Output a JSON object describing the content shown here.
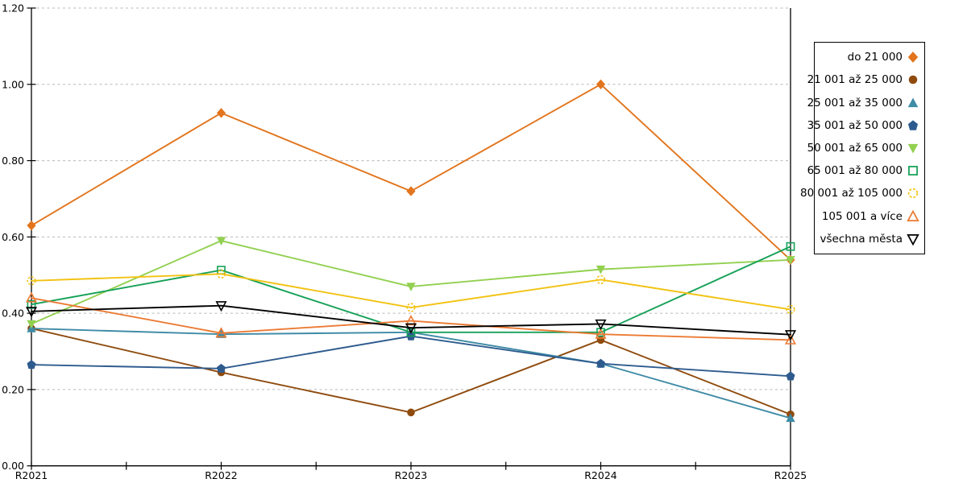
{
  "chart_data": {
    "type": "line",
    "title": "",
    "xlabel": "",
    "ylabel": "",
    "categories": [
      "R2021",
      "R2022",
      "R2023",
      "R2024",
      "R2025"
    ],
    "ylim": [
      0.0,
      1.2
    ],
    "ytick_labels": [
      "0.00",
      "0.20",
      "0.40",
      "0.60",
      "0.80",
      "1.00",
      "1.20"
    ],
    "grid": "horizontal-dashed",
    "grid_color": "#b8b8b8",
    "axis_color": "#000000",
    "legend_position": "right",
    "series": [
      {
        "name": "do 21 000",
        "color": "#e2751d",
        "marker": "diamond",
        "fill": "filled",
        "values": [
          0.63,
          0.925,
          0.72,
          1.0,
          0.54
        ]
      },
      {
        "name": "21 001 až 25 000",
        "color": "#8f4b0e",
        "marker": "circle",
        "fill": "filled",
        "values": [
          0.36,
          0.245,
          0.14,
          0.33,
          0.135
        ]
      },
      {
        "name": "25 001 až 35 000",
        "color": "#3f8ba6",
        "marker": "triangle-up",
        "fill": "filled",
        "values": [
          0.36,
          0.345,
          0.35,
          0.268,
          0.125
        ]
      },
      {
        "name": "35 001 až 50 000",
        "color": "#2e5b8e",
        "marker": "pentagon",
        "fill": "filled",
        "values": [
          0.265,
          0.255,
          0.34,
          0.268,
          0.235
        ]
      },
      {
        "name": "50 001 až 65 000",
        "color": "#92d050",
        "marker": "triangle-down",
        "fill": "filled",
        "values": [
          0.372,
          0.59,
          0.47,
          0.515,
          0.54
        ]
      },
      {
        "name": "65 001 až 80 000",
        "color": "#16a158",
        "marker": "square",
        "fill": "open",
        "values": [
          0.423,
          0.513,
          0.35,
          0.35,
          0.575
        ]
      },
      {
        "name": "80 001 až 105 000",
        "color": "#f2c211",
        "marker": "circle",
        "fill": "open",
        "values": [
          0.485,
          0.503,
          0.415,
          0.488,
          0.41
        ]
      },
      {
        "name": "105 001 a více",
        "color": "#ec7a33",
        "marker": "triangle-up",
        "fill": "open",
        "values": [
          0.44,
          0.348,
          0.38,
          0.345,
          0.33
        ]
      },
      {
        "name": "všechna města",
        "color": "#000000",
        "marker": "triangle-down",
        "fill": "open",
        "values": [
          0.405,
          0.42,
          0.362,
          0.372,
          0.344
        ]
      }
    ]
  }
}
